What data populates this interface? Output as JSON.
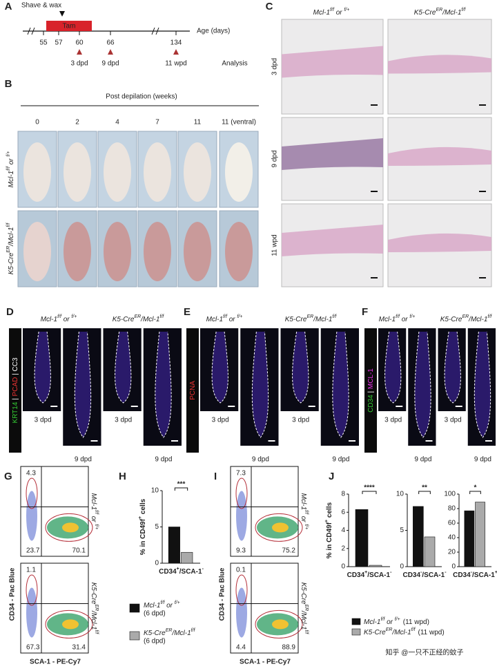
{
  "genotypes": {
    "control": [
      {
        "text": "Mcl-1"
      },
      {
        "text": "f/f",
        "sup": true
      },
      {
        "text": " or "
      },
      {
        "text": "f/+",
        "sup": true
      }
    ],
    "mutant": [
      {
        "text": "K5-Cre"
      },
      {
        "text": "ER",
        "sup": true
      },
      {
        "text": "/Mcl-1"
      },
      {
        "text": "f/f",
        "sup": true
      }
    ]
  },
  "panel_a": {
    "label": "A",
    "shave": "Shave & wax",
    "tam": "Tam",
    "ticks": [
      "55",
      "57",
      "60",
      "66",
      "134"
    ],
    "axis": "Age (days)",
    "timepoints": [
      "3 dpd",
      "9 dpd",
      "11 wpd"
    ],
    "analysis": "Analysis"
  },
  "panel_b": {
    "label": "B",
    "title": "Post depilation (weeks)",
    "columns": [
      "0",
      "2",
      "4",
      "7",
      "11",
      "11 (ventral)"
    ]
  },
  "panel_c": {
    "label": "C",
    "rows": [
      "3 dpd",
      "9 dpd",
      "11 wpd"
    ]
  },
  "panel_d": {
    "label": "D",
    "channels": [
      {
        "text": "KRT14",
        "color": "#3c3"
      },
      {
        "text": " | ",
        "color": "#fff"
      },
      {
        "text": "PCAD",
        "color": "#e33"
      },
      {
        "text": " | ",
        "color": "#fff"
      },
      {
        "text": "CC3",
        "color": "#fff"
      }
    ],
    "times": [
      "3 dpd",
      "9 dpd"
    ]
  },
  "panel_e": {
    "label": "E",
    "channels": [
      {
        "text": "PCNA",
        "color": "#e33"
      }
    ],
    "times": [
      "3 dpd",
      "9 dpd"
    ]
  },
  "panel_f": {
    "label": "F",
    "channels": [
      {
        "text": "CD34",
        "color": "#3c3"
      },
      {
        "text": " | ",
        "color": "#fff"
      },
      {
        "text": "MCL-1",
        "color": "#e3e"
      }
    ],
    "times": [
      "3 dpd",
      "9 dpd"
    ]
  },
  "panel_g": {
    "label": "G",
    "quadrants": [
      [
        "4.3",
        "23.7",
        "70.1"
      ],
      [
        "1.1",
        "67.3",
        "31.4"
      ]
    ]
  },
  "panel_i": {
    "label": "I",
    "quadrants": [
      [
        "7.3",
        "9.3",
        "75.2"
      ],
      [
        "0.1",
        "4.4",
        "88.9"
      ]
    ]
  },
  "flow_axes": {
    "y": "CD34 - Pac Blue",
    "x": "SCA-1 - PE-Cy7"
  },
  "panel_h": {
    "label": "H",
    "legend_suffix": "(6 dpd)"
  },
  "panel_j": {
    "label": "J",
    "legend_suffix": "(11 wpd)"
  },
  "charts": [
    {
      "type": "bar",
      "ylabel": [
        {
          "text": "% in CD49f"
        },
        {
          "text": "+",
          "sup": true
        },
        {
          "text": " cells"
        }
      ],
      "categories": [
        [
          {
            "text": "CD34"
          },
          {
            "text": "+",
            "sup": true
          },
          {
            "text": "/SCA-1"
          },
          {
            "text": "-",
            "sup": true
          }
        ]
      ],
      "series": [
        {
          "color": "#111",
          "values": [
            5.0
          ]
        },
        {
          "color": "#aaa",
          "values": [
            1.5
          ]
        }
      ],
      "ylim": [
        0,
        10
      ],
      "yticks": [
        0,
        5,
        10
      ],
      "significance": "***"
    },
    {
      "type": "bar",
      "ylabel": [
        {
          "text": "% in CD49f"
        },
        {
          "text": "+",
          "sup": true
        },
        {
          "text": " cells"
        }
      ],
      "categories": [
        [
          {
            "text": "CD34"
          },
          {
            "text": "+",
            "sup": true
          },
          {
            "text": "/SCA-1"
          },
          {
            "text": "-",
            "sup": true
          }
        ]
      ],
      "series": [
        {
          "color": "#111",
          "values": [
            6.3
          ]
        },
        {
          "color": "#aaa",
          "values": [
            0.15
          ]
        }
      ],
      "ylim": [
        0,
        8
      ],
      "yticks": [
        0,
        2,
        4,
        6,
        8
      ],
      "significance": "****"
    },
    {
      "type": "bar",
      "categories": [
        [
          {
            "text": "CD34"
          },
          {
            "text": "-",
            "sup": true
          },
          {
            "text": "/SCA-1"
          },
          {
            "text": "-",
            "sup": true
          }
        ]
      ],
      "series": [
        {
          "color": "#111",
          "values": [
            8.3
          ]
        },
        {
          "color": "#aaa",
          "values": [
            4.1
          ]
        }
      ],
      "ylim": [
        0,
        10
      ],
      "yticks": [
        0,
        5,
        10
      ],
      "significance": "**"
    },
    {
      "type": "bar",
      "categories": [
        [
          {
            "text": "CD34"
          },
          {
            "text": "-",
            "sup": true
          },
          {
            "text": "/SCA-1"
          },
          {
            "text": "+",
            "sup": true
          }
        ]
      ],
      "series": [
        {
          "color": "#111",
          "values": [
            77
          ]
        },
        {
          "color": "#aaa",
          "values": [
            89
          ]
        }
      ],
      "ylim": [
        0,
        100
      ],
      "yticks": [
        0,
        20,
        40,
        60,
        80,
        100
      ],
      "significance": "*"
    }
  ],
  "watermark": "知乎 @一只不正经的蚊子"
}
